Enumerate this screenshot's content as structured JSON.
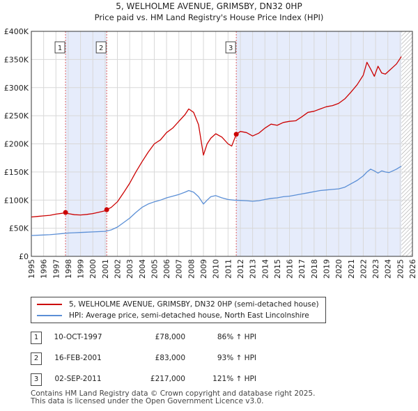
{
  "chart_data": {
    "type": "line",
    "title": "5, WELHOLME AVENUE, GRIMSBY, DN32 0HP",
    "subtitle": "Price paid vs. HM Land Registry's House Price Index (HPI)",
    "x_range": [
      1995,
      2026
    ],
    "ylim": [
      0,
      400000
    ],
    "y_ticks": [
      0,
      50000,
      100000,
      150000,
      200000,
      250000,
      300000,
      350000,
      400000
    ],
    "y_tick_labels": [
      "£0",
      "£50K",
      "£100K",
      "£150K",
      "£200K",
      "£250K",
      "£300K",
      "£350K",
      "£400K"
    ],
    "x_ticks": [
      1995,
      1996,
      1997,
      1998,
      1999,
      2000,
      2001,
      2002,
      2003,
      2004,
      2005,
      2006,
      2007,
      2008,
      2009,
      2010,
      2011,
      2012,
      2013,
      2014,
      2015,
      2016,
      2017,
      2018,
      2019,
      2020,
      2021,
      2022,
      2023,
      2024,
      2025,
      2026
    ],
    "x_tick_labels": [
      "1995",
      "1996",
      "1997",
      "1998",
      "1999",
      "2000",
      "2001",
      "2002",
      "2003",
      "2004",
      "2005",
      "2006",
      "2007",
      "2008",
      "2009",
      "2010",
      "2011",
      "2012",
      "2013",
      "2014",
      "2015",
      "2016",
      "2017",
      "2018",
      "2019",
      "2020",
      "2021",
      "2022",
      "2023",
      "2024",
      "2025",
      "2026"
    ],
    "grid": true,
    "series": [
      {
        "name": "5, WELHOLME AVENUE, GRIMSBY, DN32 0HP (semi-detached house)",
        "color": "#cc0000",
        "x": [
          1995.0,
          1995.5,
          1996.0,
          1996.5,
          1997.0,
          1997.5,
          1997.78,
          1998.0,
          1998.5,
          1999.0,
          1999.5,
          2000.0,
          2000.5,
          2001.0,
          2001.13,
          2001.5,
          2002.0,
          2002.5,
          2003.0,
          2003.5,
          2004.0,
          2004.5,
          2005.0,
          2005.5,
          2006.0,
          2006.5,
          2007.0,
          2007.5,
          2007.8,
          2008.2,
          2008.6,
          2009.0,
          2009.3,
          2009.6,
          2010.0,
          2010.5,
          2011.0,
          2011.3,
          2011.67,
          2012.0,
          2012.5,
          2013.0,
          2013.5,
          2014.0,
          2014.5,
          2015.0,
          2015.5,
          2016.0,
          2016.5,
          2017.0,
          2017.5,
          2018.0,
          2018.5,
          2019.0,
          2019.5,
          2020.0,
          2020.5,
          2021.0,
          2021.5,
          2022.0,
          2022.3,
          2022.6,
          2022.9,
          2023.2,
          2023.5,
          2023.8,
          2024.1,
          2024.4,
          2024.7,
          2025.0,
          2025.1
        ],
        "y": [
          70000,
          71000,
          72000,
          73000,
          75000,
          76500,
          78000,
          76000,
          74000,
          73500,
          74500,
          76000,
          78500,
          81000,
          83000,
          87000,
          97000,
          113000,
          130000,
          150000,
          168000,
          185000,
          200000,
          207000,
          220000,
          228000,
          240000,
          252000,
          262000,
          256000,
          234000,
          180000,
          200000,
          210000,
          218000,
          212000,
          200000,
          196000,
          217000,
          222000,
          220000,
          214000,
          219000,
          228000,
          235000,
          233000,
          238000,
          240000,
          241000,
          248000,
          256000,
          258000,
          262000,
          266000,
          268000,
          272000,
          280000,
          292000,
          305000,
          322000,
          345000,
          333000,
          320000,
          338000,
          326000,
          324000,
          330000,
          336000,
          342000,
          352000,
          355000
        ]
      },
      {
        "name": "HPI: Average price, semi-detached house, North East Lincolnshire",
        "color": "#5b8fd6",
        "x": [
          1995.0,
          1995.5,
          1996.0,
          1996.5,
          1997.0,
          1997.5,
          1998.0,
          1998.5,
          1999.0,
          1999.5,
          2000.0,
          2000.5,
          2001.0,
          2001.5,
          2002.0,
          2002.5,
          2003.0,
          2003.5,
          2004.0,
          2004.5,
          2005.0,
          2005.5,
          2006.0,
          2006.5,
          2007.0,
          2007.5,
          2007.8,
          2008.2,
          2008.6,
          2009.0,
          2009.3,
          2009.6,
          2010.0,
          2010.5,
          2011.0,
          2011.5,
          2012.0,
          2012.5,
          2013.0,
          2013.5,
          2014.0,
          2014.5,
          2015.0,
          2015.5,
          2016.0,
          2016.5,
          2017.0,
          2017.5,
          2018.0,
          2018.5,
          2019.0,
          2019.5,
          2020.0,
          2020.5,
          2021.0,
          2021.5,
          2022.0,
          2022.3,
          2022.6,
          2022.9,
          2023.2,
          2023.5,
          2023.8,
          2024.1,
          2024.4,
          2024.7,
          2025.0,
          2025.1
        ],
        "y": [
          37000,
          37500,
          38000,
          38500,
          39500,
          40500,
          41500,
          42000,
          42500,
          43000,
          43500,
          44000,
          44500,
          47000,
          52000,
          60000,
          68000,
          78000,
          87000,
          93000,
          97000,
          100000,
          104000,
          107000,
          110000,
          114000,
          117000,
          114000,
          106000,
          93000,
          100000,
          106000,
          108000,
          104000,
          101000,
          100000,
          99500,
          99000,
          98000,
          99000,
          101000,
          103000,
          104000,
          106000,
          107000,
          109000,
          111000,
          113000,
          115000,
          117000,
          118000,
          119000,
          120000,
          123000,
          129000,
          135000,
          143000,
          150000,
          155000,
          152000,
          148000,
          152000,
          150000,
          149000,
          152000,
          155000,
          159000,
          160000
        ]
      }
    ],
    "sales": [
      {
        "label": "1",
        "x": 1997.78,
        "y": 78000
      },
      {
        "label": "2",
        "x": 2001.13,
        "y": 83000
      },
      {
        "label": "3",
        "x": 2011.67,
        "y": 217000
      }
    ],
    "shaded_regions": [
      [
        1997.78,
        2001.13
      ],
      [
        2011.67,
        2025.1
      ]
    ],
    "hatched_from": 2025.1,
    "colors": {
      "shade": "#e6ecfb",
      "grid": "#d8d8d8",
      "sale_line": "#e06060"
    }
  },
  "legend": {
    "property_label": "5, WELHOLME AVENUE, GRIMSBY, DN32 0HP (semi-detached house)",
    "hpi_label": "HPI: Average price, semi-detached house, North East Lincolnshire"
  },
  "transactions": [
    {
      "num": "1",
      "date": "10-OCT-1997",
      "price": "£78,000",
      "hpi": "86% ↑ HPI"
    },
    {
      "num": "2",
      "date": "16-FEB-2001",
      "price": "£83,000",
      "hpi": "93% ↑ HPI"
    },
    {
      "num": "3",
      "date": "02-SEP-2011",
      "price": "£217,000",
      "hpi": "121% ↑ HPI"
    }
  ],
  "footer": {
    "line1": "Contains HM Land Registry data © Crown copyright and database right 2025.",
    "line2": "This data is licensed under the Open Government Licence v3.0."
  }
}
